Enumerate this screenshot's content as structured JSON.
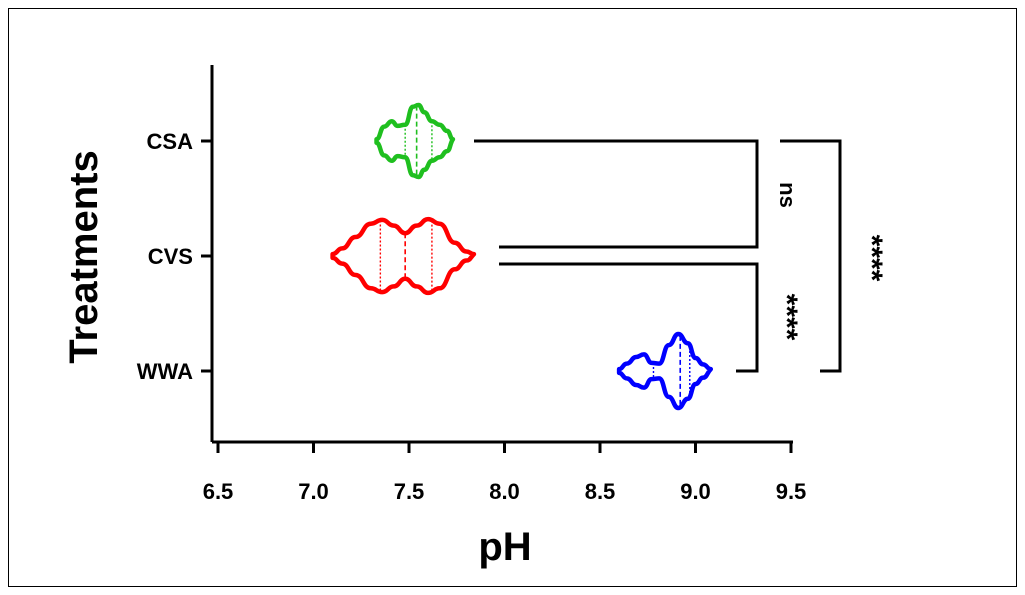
{
  "chart_data": {
    "type": "violin",
    "orientation": "horizontal",
    "title": "",
    "xlabel": "pH",
    "ylabel": "Treatments",
    "xlim": [
      6.5,
      9.5
    ],
    "xticks": [
      "6.5",
      "7.0",
      "7.5",
      "8.0",
      "8.5",
      "9.0",
      "9.5"
    ],
    "grid": false,
    "categories": [
      "CSA",
      "CVS",
      "WWA"
    ],
    "series": [
      {
        "category": "CSA",
        "color": "#1fbf1f",
        "range": [
          7.33,
          7.73
        ],
        "median": 7.54,
        "quartiles": [
          7.48,
          7.62
        ],
        "profile": [
          [
            7.33,
            0.05
          ],
          [
            7.37,
            0.4
          ],
          [
            7.41,
            0.55
          ],
          [
            7.44,
            0.42
          ],
          [
            7.48,
            0.45
          ],
          [
            7.52,
            0.95
          ],
          [
            7.55,
            1.0
          ],
          [
            7.58,
            0.8
          ],
          [
            7.62,
            0.55
          ],
          [
            7.66,
            0.45
          ],
          [
            7.7,
            0.28
          ],
          [
            7.73,
            0.05
          ]
        ]
      },
      {
        "category": "CVS",
        "color": "#ff0000",
        "range": [
          7.1,
          7.84
        ],
        "median": 7.48,
        "quartiles": [
          7.35,
          7.62
        ],
        "profile": [
          [
            7.1,
            0.05
          ],
          [
            7.15,
            0.2
          ],
          [
            7.22,
            0.5
          ],
          [
            7.3,
            0.85
          ],
          [
            7.36,
            0.95
          ],
          [
            7.42,
            0.8
          ],
          [
            7.48,
            0.6
          ],
          [
            7.54,
            0.8
          ],
          [
            7.6,
            0.97
          ],
          [
            7.66,
            0.85
          ],
          [
            7.74,
            0.35
          ],
          [
            7.8,
            0.12
          ],
          [
            7.84,
            0.05
          ]
        ]
      },
      {
        "category": "WWA",
        "color": "#0000ff",
        "range": [
          8.6,
          9.08
        ],
        "median": 8.92,
        "quartiles": [
          8.78,
          8.97
        ],
        "profile": [
          [
            8.6,
            0.05
          ],
          [
            8.64,
            0.2
          ],
          [
            8.69,
            0.38
          ],
          [
            8.73,
            0.45
          ],
          [
            8.77,
            0.22
          ],
          [
            8.81,
            0.2
          ],
          [
            8.86,
            0.7
          ],
          [
            8.91,
            1.0
          ],
          [
            8.96,
            0.75
          ],
          [
            9.0,
            0.35
          ],
          [
            9.04,
            0.18
          ],
          [
            9.08,
            0.05
          ]
        ]
      }
    ],
    "comparisons": [
      {
        "groups": [
          "CSA",
          "CVS"
        ],
        "label": "ns"
      },
      {
        "groups": [
          "CVS",
          "WWA"
        ],
        "label": "****"
      },
      {
        "groups": [
          "CSA",
          "WWA"
        ],
        "label": "****"
      }
    ]
  }
}
